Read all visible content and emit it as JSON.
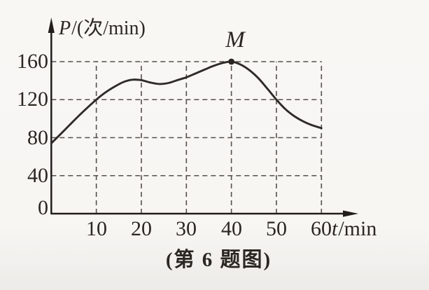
{
  "figure": {
    "caption": "(第 6 题图)"
  },
  "chart": {
    "y_axis": {
      "variable": "P",
      "unit_suffix": "/(次/min)"
    },
    "x_axis": {
      "variable": "t",
      "unit_suffix": "/min"
    },
    "point_label": "M",
    "colors": {
      "background": "#f7f6f3",
      "curve": "#2e2b28",
      "grid": "#55504b",
      "axis": "#211e1b",
      "dot": "#2a2522",
      "text": "#2b2723"
    }
  },
  "chart_data": {
    "type": "line",
    "title": "",
    "xlabel": "t/min",
    "ylabel": "P/(次/min)",
    "x_ticks": [
      10,
      20,
      30,
      40,
      50,
      60
    ],
    "y_ticks": [
      0,
      40,
      80,
      120,
      160
    ],
    "xlim": [
      0,
      67
    ],
    "ylim": [
      0,
      205
    ],
    "grid": true,
    "legend": false,
    "annotated_point": {
      "label": "M",
      "t": 40,
      "P": 160
    },
    "series": [
      {
        "name": "P(t)",
        "points": [
          [
            0,
            74
          ],
          [
            2,
            83.5
          ],
          [
            4,
            93
          ],
          [
            6,
            102.5
          ],
          [
            8,
            111.5
          ],
          [
            10,
            120
          ],
          [
            12,
            127.5
          ],
          [
            14,
            133.5
          ],
          [
            16,
            138.5
          ],
          [
            18,
            141
          ],
          [
            20,
            140.5
          ],
          [
            22,
            138
          ],
          [
            24,
            136.5
          ],
          [
            26,
            137.5
          ],
          [
            28,
            140.5
          ],
          [
            30,
            143.5
          ],
          [
            32,
            147.5
          ],
          [
            34,
            151.5
          ],
          [
            36,
            155.5
          ],
          [
            38,
            158.5
          ],
          [
            40,
            160
          ],
          [
            42,
            157
          ],
          [
            44,
            151
          ],
          [
            46,
            142.5
          ],
          [
            48,
            131.5
          ],
          [
            50,
            120
          ],
          [
            52,
            110
          ],
          [
            54,
            102.5
          ],
          [
            56,
            97
          ],
          [
            58,
            93
          ],
          [
            60,
            90
          ]
        ]
      }
    ]
  }
}
